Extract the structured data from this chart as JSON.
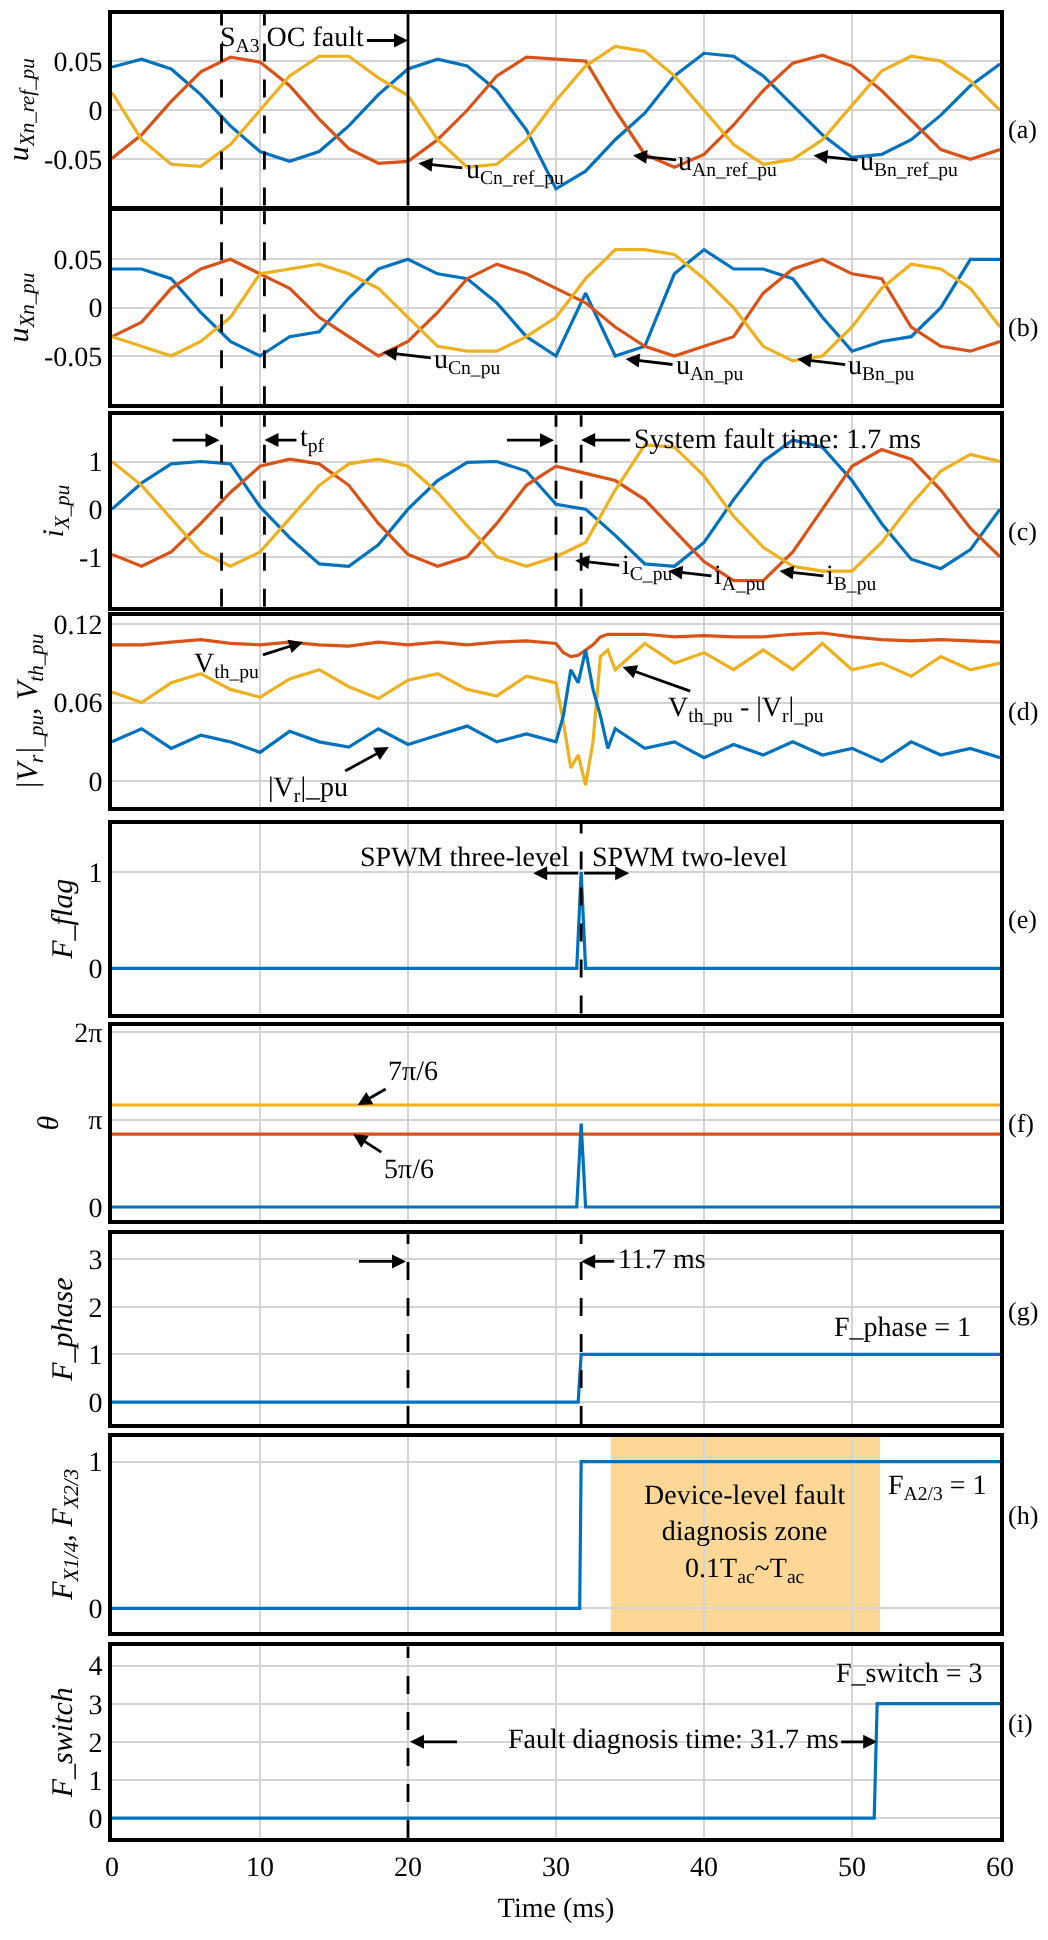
{
  "chart_data": [
    {
      "type": "line",
      "ylabel": "u$_{Xn_ref_pu}$",
      "x": [
        0,
        2,
        4,
        6,
        8,
        10,
        12,
        14,
        16,
        18,
        20,
        22,
        24,
        26,
        28,
        30,
        32,
        34,
        36,
        38,
        40,
        42,
        44,
        46,
        48,
        50,
        52,
        54,
        56,
        58,
        60
      ],
      "xlim": [
        0,
        60
      ],
      "xticks": [
        0,
        10,
        20,
        30,
        40,
        50,
        60
      ],
      "ylim": [
        -0.097,
        0.098
      ],
      "yticks": [
        -0.05,
        0,
        0.05
      ],
      "grid": true,
      "tick_labels": "y",
      "series": [
        {
          "color": "#0072bd",
          "values": [
            0.044,
            0.052,
            0.042,
            0.016,
            -0.016,
            -0.042,
            -0.052,
            -0.042,
            -0.016,
            0.016,
            0.042,
            0.052,
            0.045,
            0.02,
            -0.02,
            -0.08,
            -0.062,
            -0.03,
            -0.003,
            0.035,
            0.058,
            0.055,
            0.035,
            0.005,
            -0.025,
            -0.048,
            -0.045,
            -0.03,
            -0.005,
            0.025,
            0.047
          ]
        },
        {
          "color": "#d95319",
          "values": [
            -0.049,
            -0.025,
            0.009,
            0.039,
            0.054,
            0.049,
            0.025,
            -0.009,
            -0.039,
            -0.054,
            -0.052,
            -0.03,
            0.0,
            0.035,
            0.054,
            0.052,
            0.05,
            0.0,
            -0.045,
            -0.058,
            -0.045,
            -0.015,
            0.02,
            0.048,
            0.056,
            0.045,
            0.02,
            -0.01,
            -0.04,
            -0.05,
            -0.04
          ]
        },
        {
          "color": "#edb120",
          "values": [
            0.018,
            -0.03,
            -0.055,
            -0.057,
            -0.035,
            0.0,
            0.035,
            0.055,
            0.055,
            0.033,
            0.015,
            -0.03,
            -0.058,
            -0.055,
            -0.03,
            0.01,
            0.045,
            0.065,
            0.06,
            0.035,
            0.0,
            -0.035,
            -0.055,
            -0.05,
            -0.03,
            0.005,
            0.04,
            0.055,
            0.05,
            0.03,
            0.0
          ]
        }
      ],
      "ref_lines": [
        {
          "axis": "x",
          "value": 7.4,
          "line_style": "dashed"
        },
        {
          "axis": "x",
          "value": 10.3,
          "line_style": "dashed"
        },
        {
          "axis": "x",
          "value": 20,
          "line_style": "solid"
        }
      ],
      "annotations": [
        {
          "text": "S$_{A3}$ OC fault",
          "x": 20,
          "y": 0.071
        },
        {
          "text": "u$_{Cn_ref_pu}$",
          "x": 20.7,
          "y": -0.054
        },
        {
          "text": "u$_{An_ref_pu}$",
          "x": 35.2,
          "y": -0.046
        },
        {
          "text": "u$_{Bn_ref_pu}$",
          "x": 47.4,
          "y": -0.046
        },
        "(a)"
      ]
    },
    {
      "type": "line",
      "ylabel": "u$_{Xn_pu}$",
      "x": [
        0,
        2,
        4,
        6,
        8,
        10,
        12,
        14,
        16,
        18,
        20,
        22,
        24,
        26,
        28,
        30,
        32,
        34,
        36,
        38,
        40,
        42,
        44,
        46,
        48,
        50,
        52,
        54,
        56,
        58,
        60
      ],
      "xlim": [
        0,
        60
      ],
      "xticks": [
        0,
        10,
        20,
        30,
        40,
        50,
        60
      ],
      "ylim": [
        -0.1,
        0.1
      ],
      "yticks": [
        -0.05,
        0,
        0.05
      ],
      "grid": true,
      "tick_labels": "y",
      "series": [
        {
          "color": "#0072bd",
          "values": [
            0.04,
            0.04,
            0.03,
            -0.005,
            -0.035,
            -0.05,
            -0.03,
            -0.025,
            0.01,
            0.04,
            0.05,
            0.035,
            0.03,
            0.005,
            -0.03,
            -0.05,
            0.015,
            -0.05,
            -0.04,
            0.035,
            0.06,
            0.04,
            0.04,
            0.03,
            -0.01,
            -0.045,
            -0.035,
            -0.03,
            0.0,
            0.05,
            0.05
          ]
        },
        {
          "color": "#d95319",
          "values": [
            -0.03,
            -0.015,
            0.02,
            0.04,
            0.05,
            0.035,
            0.02,
            -0.01,
            -0.03,
            -0.05,
            -0.035,
            -0.005,
            0.03,
            0.045,
            0.035,
            0.02,
            0.005,
            -0.02,
            -0.04,
            -0.05,
            -0.04,
            -0.03,
            0.015,
            0.04,
            0.05,
            0.035,
            0.03,
            -0.02,
            -0.04,
            -0.045,
            -0.035
          ]
        },
        {
          "color": "#edb120",
          "values": [
            -0.03,
            -0.04,
            -0.05,
            -0.035,
            -0.01,
            0.035,
            0.04,
            0.045,
            0.035,
            0.02,
            -0.01,
            -0.04,
            -0.045,
            -0.045,
            -0.03,
            -0.01,
            0.03,
            0.06,
            0.06,
            0.055,
            0.03,
            0.0,
            -0.04,
            -0.055,
            -0.05,
            -0.02,
            0.02,
            0.045,
            0.04,
            0.02,
            -0.02
          ]
        }
      ],
      "ref_lines": [
        {
          "axis": "x",
          "value": 7.4,
          "line_style": "dashed"
        },
        {
          "axis": "x",
          "value": 10.3,
          "line_style": "dashed"
        }
      ],
      "annotations": [
        {
          "text": "u$_{Cn_pu}$",
          "x": 18.3,
          "y": -0.046
        },
        {
          "text": "u$_{An_pu}$",
          "x": 34.7,
          "y": -0.053
        },
        {
          "text": "u$_{Bn_pu}$",
          "x": 46.3,
          "y": -0.053
        },
        "(b)"
      ]
    },
    {
      "type": "line",
      "ylabel": "i$_{X_pu}$",
      "x": [
        0,
        2,
        4,
        6,
        8,
        10,
        12,
        14,
        16,
        18,
        20,
        22,
        24,
        26,
        28,
        30,
        32,
        34,
        36,
        38,
        40,
        42,
        44,
        46,
        48,
        50,
        52,
        54,
        56,
        58,
        60
      ],
      "xlim": [
        0,
        60
      ],
      "xticks": [
        0,
        10,
        20,
        30,
        40,
        50,
        60
      ],
      "ylim": [
        -2.05,
        1.97
      ],
      "yticks": [
        -1,
        0,
        1
      ],
      "grid": true,
      "tick_labels": "y",
      "series": [
        {
          "color": "#0072bd",
          "values": [
            0,
            0.55,
            0.95,
            1.0,
            0.95,
            0.05,
            -0.6,
            -1.15,
            -1.2,
            -0.75,
            0.0,
            0.6,
            0.98,
            1.0,
            0.8,
            0.1,
            0.0,
            -0.55,
            -1.15,
            -1.2,
            -0.7,
            0.2,
            1.0,
            1.45,
            1.3,
            0.6,
            -0.3,
            -1.05,
            -1.25,
            -0.85,
            0.0
          ]
        },
        {
          "color": "#d95319",
          "values": [
            -0.95,
            -1.2,
            -0.9,
            -0.3,
            0.35,
            0.9,
            1.05,
            0.95,
            0.5,
            -0.3,
            -0.95,
            -1.2,
            -1.0,
            -0.3,
            0.5,
            0.9,
            0.75,
            0.6,
            0.2,
            -0.45,
            -1.1,
            -1.5,
            -1.5,
            -0.9,
            0.0,
            0.9,
            1.25,
            1.05,
            0.4,
            -0.4,
            -1.0
          ]
        },
        {
          "color": "#edb120",
          "values": [
            1.0,
            0.5,
            -0.2,
            -0.9,
            -1.2,
            -0.9,
            -0.2,
            0.5,
            0.95,
            1.05,
            0.9,
            0.35,
            -0.35,
            -1.0,
            -1.2,
            -1.0,
            -0.7,
            0.4,
            1.35,
            1.3,
            0.7,
            -0.15,
            -0.8,
            -1.2,
            -1.3,
            -1.3,
            -0.7,
            0.1,
            0.8,
            1.15,
            1.0
          ]
        }
      ],
      "ref_lines": [
        {
          "axis": "x",
          "value": 7.4,
          "line_style": "dashed"
        },
        {
          "axis": "x",
          "value": 10.3,
          "line_style": "dashed"
        },
        {
          "axis": "x",
          "value": 30,
          "line_style": "dashed"
        },
        {
          "axis": "x",
          "value": 31.7,
          "line_style": "dashed"
        }
      ],
      "annotations": [
        {
          "text": "i$_{C_pu}$",
          "x": 31.3,
          "y": -1.08
        },
        {
          "text": "i$_{A_pu}$",
          "x": 37.6,
          "y": -1.3
        },
        {
          "text": "i$_{B_pu}$",
          "x": 45.1,
          "y": -1.3
        },
        {
          "text": "t$_{pf}$",
          "x": 10.3,
          "y": 1.45
        },
        {
          "text": "System fault time: 1.7 ms",
          "x": 31.7,
          "y": 1.45
        },
        "(c)"
      ]
    },
    {
      "type": "line",
      "ylabel": "|V$_{r}$|$_{_pu}$, V$_{th_pu}$",
      "x": [
        0,
        2,
        4,
        6,
        8,
        10,
        12,
        14,
        16,
        18,
        20,
        22,
        24,
        26,
        28,
        30,
        30.5,
        31,
        31.5,
        32,
        32.5,
        33,
        33.5,
        34,
        36,
        38,
        40,
        42,
        44,
        46,
        48,
        50,
        52,
        54,
        56,
        58,
        60
      ],
      "xlim": [
        0,
        60
      ],
      "xticks": [
        0,
        10,
        20,
        30,
        40,
        50,
        60
      ],
      "ylim": [
        -0.02,
        0.126
      ],
      "yticks": [
        0,
        0.06,
        0.12
      ],
      "grid": true,
      "tick_labels": "y",
      "series": [
        {
          "color": "#d95319",
          "values": [
            0.104,
            0.104,
            0.106,
            0.108,
            0.105,
            0.104,
            0.106,
            0.104,
            0.103,
            0.106,
            0.104,
            0.106,
            0.104,
            0.106,
            0.107,
            0.105,
            0.098,
            0.095,
            0.096,
            0.1,
            0.104,
            0.11,
            0.112,
            0.112,
            0.112,
            0.11,
            0.111,
            0.11,
            0.11,
            0.112,
            0.113,
            0.11,
            0.108,
            0.107,
            0.108,
            0.107,
            0.106
          ]
        },
        {
          "color": "#edb120",
          "values": [
            0.068,
            0.06,
            0.075,
            0.082,
            0.07,
            0.064,
            0.078,
            0.085,
            0.072,
            0.063,
            0.077,
            0.082,
            0.07,
            0.065,
            0.08,
            0.075,
            0.045,
            0.01,
            0.02,
            -0.003,
            0.03,
            0.095,
            0.1,
            0.085,
            0.105,
            0.09,
            0.098,
            0.085,
            0.1,
            0.085,
            0.105,
            0.085,
            0.09,
            0.08,
            0.095,
            0.085,
            0.09
          ]
        },
        {
          "color": "#0072bd",
          "values": [
            0.03,
            0.04,
            0.025,
            0.035,
            0.03,
            0.022,
            0.038,
            0.03,
            0.026,
            0.04,
            0.028,
            0.035,
            0.042,
            0.03,
            0.036,
            0.03,
            0.05,
            0.085,
            0.075,
            0.1,
            0.07,
            0.05,
            0.025,
            0.04,
            0.025,
            0.03,
            0.018,
            0.028,
            0.02,
            0.03,
            0.02,
            0.025,
            0.015,
            0.03,
            0.02,
            0.025,
            0.018
          ]
        }
      ],
      "annotations": [
        {
          "text": "V$_{th_pu}$",
          "x": 12.9,
          "y": 0.106
        },
        {
          "text": "|V$_{r}$|_pu",
          "x": 18.7,
          "y": 0.026
        },
        {
          "text": "V$_{th_pu}$ - |V$_{r}$|$_{_pu}$",
          "x": 34.5,
          "y": 0.087
        },
        "(d)"
      ]
    },
    {
      "type": "line",
      "ylabel": "F_flag",
      "xlim": [
        0,
        60
      ],
      "xticks": [
        0,
        10,
        20,
        30,
        40,
        50,
        60
      ],
      "ylim": [
        -0.47,
        1.5
      ],
      "yticks": [
        0,
        1
      ],
      "grid": true,
      "tick_labels": "y",
      "series": [
        {
          "color": "#0072bd",
          "x": [
            0,
            31.4,
            31.7,
            32.0,
            60
          ],
          "values": [
            0,
            0,
            1,
            0,
            0
          ]
        }
      ],
      "ref_lines": [
        {
          "axis": "x",
          "value": 31.7,
          "line_style": "dashed"
        }
      ],
      "annotations": [
        "SPWM three-level",
        "SPWM two-level",
        "(e)"
      ]
    },
    {
      "type": "line",
      "ylabel": "θ",
      "xlim": [
        0,
        60
      ],
      "xticks": [
        0,
        10,
        20,
        30,
        40,
        50,
        60
      ],
      "ylim": [
        -0.455,
        6.5
      ],
      "yticks": [
        0,
        {
          "value": 3.1416,
          "label": "π"
        },
        {
          "value": 6.2832,
          "label": "2π"
        }
      ],
      "grid": true,
      "tick_labels": "y",
      "series": [
        {
          "color": "#edb120",
          "x": [
            0,
            60
          ],
          "values": [
            3.67,
            3.67
          ]
        },
        {
          "color": "#d95319",
          "x": [
            0,
            60
          ],
          "values": [
            2.62,
            2.62
          ]
        },
        {
          "color": "#0072bd",
          "x": [
            0,
            31.4,
            31.7,
            32.0,
            60
          ],
          "values": [
            0,
            0,
            3.0,
            0,
            0
          ]
        }
      ],
      "annotations": [
        {
          "text": "7π/6",
          "x": 16.6,
          "y": 3.67
        },
        {
          "text": "5π/6",
          "x": 16.3,
          "y": 2.62
        },
        "(f)"
      ]
    },
    {
      "type": "line",
      "ylabel": "F_phase",
      "xlim": [
        0,
        60
      ],
      "xticks": [
        0,
        10,
        20,
        30,
        40,
        50,
        60
      ],
      "ylim": [
        -0.46,
        3.52
      ],
      "yticks": [
        0,
        1,
        2,
        3
      ],
      "grid": true,
      "tick_labels": "y",
      "series": [
        {
          "color": "#0072bd",
          "x": [
            0,
            31.5,
            31.7,
            60
          ],
          "values": [
            0,
            0,
            1,
            1
          ]
        }
      ],
      "ref_lines": [
        {
          "axis": "x",
          "value": 20,
          "line_style": "dashed"
        },
        {
          "axis": "x",
          "value": 31.7,
          "line_style": "dashed"
        }
      ],
      "annotations": [
        {
          "text": "11.7 ms",
          "x": 31.7,
          "y": 2.95
        },
        {
          "text": "F_phase = 1",
          "x": 53.5,
          "y": 1
        },
        "(g)"
      ]
    },
    {
      "type": "line",
      "ylabel": "F$_{X1/4}$, F$_{X2/3}$",
      "xlim": [
        0,
        60
      ],
      "xticks": [
        0,
        10,
        20,
        30,
        40,
        50,
        60
      ],
      "ylim": [
        -0.16,
        1.17
      ],
      "yticks": [
        0,
        1
      ],
      "grid": true,
      "tick_labels": "y",
      "series": [
        {
          "color": "#0072bd",
          "x": [
            0,
            31.6,
            31.7,
            60
          ],
          "values": [
            0,
            0,
            1,
            1
          ]
        }
      ],
      "bands": [
        {
          "axis": "x",
          "from": 33.7,
          "to": 51.9,
          "label": "Device-level fault\ndiagnosis zone\n0.1T$_{ac}$~T$_{ac}$",
          "color": "#fdd795"
        }
      ],
      "annotations": [
        {
          "text": "F$_{A2/3}$ = 1",
          "x": 55.7,
          "y": 1
        },
        "(h)"
      ]
    },
    {
      "type": "line",
      "ylabel": "F_switch",
      "xlabel": "Time (ms)",
      "xlim": [
        0,
        60
      ],
      "xticks": [
        0,
        10,
        20,
        30,
        40,
        50,
        60
      ],
      "ylim": [
        -0.52,
        4.5
      ],
      "yticks": [
        0,
        1,
        2,
        3,
        4
      ],
      "grid": true,
      "series": [
        {
          "color": "#0072bd",
          "x": [
            0,
            51.5,
            51.7,
            60
          ],
          "values": [
            0,
            0,
            3,
            3
          ]
        }
      ],
      "ref_lines": [
        {
          "axis": "x",
          "value": 20,
          "line_style": "dashed"
        }
      ],
      "annotations": [
        {
          "text": "F_switch = 3",
          "x": 53.8,
          "y": 3
        },
        {
          "text": "Fault diagnosis time: 31.7 ms",
          "x": 51.7,
          "y": 2
        },
        "(i)"
      ]
    }
  ]
}
